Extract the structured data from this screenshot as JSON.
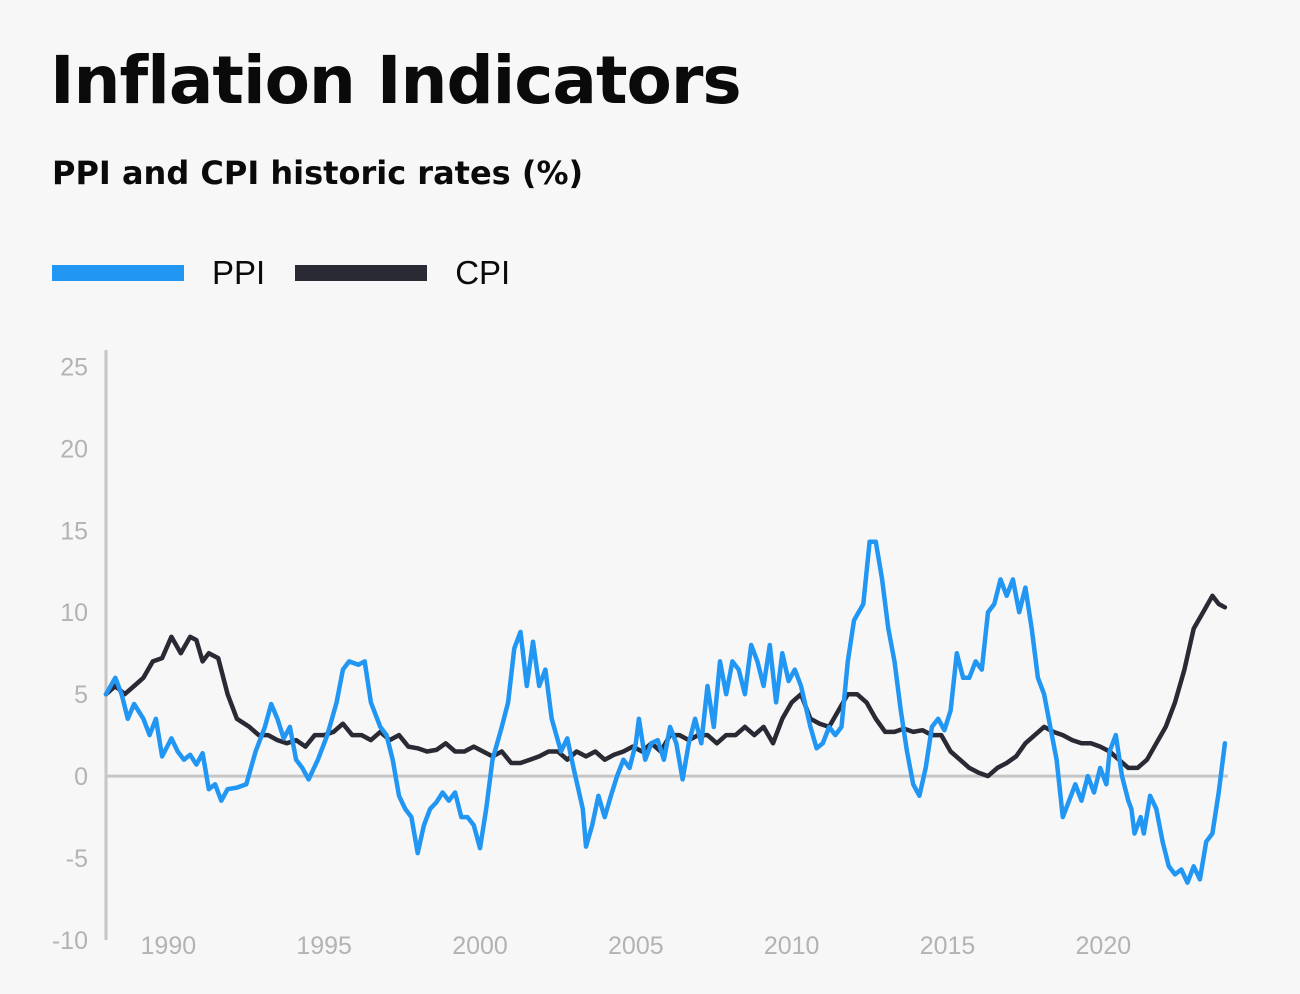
{
  "title": "Inflation Indicators",
  "subtitle": "PPI and CPI historic rates (%)",
  "legend": [
    {
      "label": "PPI",
      "color": "#2196f3"
    },
    {
      "label": "CPI",
      "color": "#2a2a35"
    }
  ],
  "chart_data": {
    "type": "line",
    "title": "Inflation Indicators",
    "subtitle": "PPI and CPI historic rates (%)",
    "xlabel": "",
    "ylabel": "",
    "xlim": [
      1988,
      2024
    ],
    "ylim": [
      -10,
      26
    ],
    "x_ticks": [
      1990,
      1995,
      2000,
      2005,
      2010,
      2015,
      2020
    ],
    "y_ticks": [
      -10,
      -5,
      0,
      5,
      10,
      15,
      20,
      25
    ],
    "grid": false,
    "legend_position": "top-left",
    "series": [
      {
        "name": "PPI",
        "color": "#2196f3",
        "points": [
          [
            1988.0,
            5.0
          ],
          [
            1988.3,
            6.0
          ],
          [
            1988.5,
            5.0
          ],
          [
            1988.7,
            3.5
          ],
          [
            1988.9,
            4.4
          ],
          [
            1989.2,
            3.5
          ],
          [
            1989.4,
            2.5
          ],
          [
            1989.6,
            3.5
          ],
          [
            1989.8,
            1.2
          ],
          [
            1990.1,
            2.3
          ],
          [
            1990.3,
            1.5
          ],
          [
            1990.5,
            1.0
          ],
          [
            1990.7,
            1.3
          ],
          [
            1990.9,
            0.7
          ],
          [
            1991.1,
            1.4
          ],
          [
            1991.3,
            -0.8
          ],
          [
            1991.5,
            -0.5
          ],
          [
            1991.7,
            -1.5
          ],
          [
            1991.9,
            -0.8
          ],
          [
            1992.2,
            -0.7
          ],
          [
            1992.5,
            -0.5
          ],
          [
            1992.8,
            1.5
          ],
          [
            1993.1,
            3.0
          ],
          [
            1993.3,
            4.4
          ],
          [
            1993.5,
            3.5
          ],
          [
            1993.7,
            2.3
          ],
          [
            1993.9,
            3.0
          ],
          [
            1994.1,
            1.0
          ],
          [
            1994.3,
            0.5
          ],
          [
            1994.5,
            -0.2
          ],
          [
            1994.8,
            1.0
          ],
          [
            1995.1,
            2.5
          ],
          [
            1995.4,
            4.5
          ],
          [
            1995.6,
            6.5
          ],
          [
            1995.8,
            7.0
          ],
          [
            1996.1,
            6.8
          ],
          [
            1996.3,
            7.0
          ],
          [
            1996.5,
            4.5
          ],
          [
            1996.8,
            3.0
          ],
          [
            1997.0,
            2.5
          ],
          [
            1997.2,
            1.0
          ],
          [
            1997.4,
            -1.2
          ],
          [
            1997.6,
            -2.0
          ],
          [
            1997.8,
            -2.5
          ],
          [
            1998.0,
            -4.7
          ],
          [
            1998.2,
            -3.0
          ],
          [
            1998.4,
            -2.0
          ],
          [
            1998.6,
            -1.6
          ],
          [
            1998.8,
            -1.0
          ],
          [
            1999.0,
            -1.5
          ],
          [
            1999.2,
            -1.0
          ],
          [
            1999.4,
            -2.5
          ],
          [
            1999.6,
            -2.5
          ],
          [
            1999.8,
            -3.0
          ],
          [
            2000.0,
            -4.4
          ],
          [
            2000.2,
            -2.0
          ],
          [
            2000.4,
            1.0
          ],
          [
            2000.7,
            3.0
          ],
          [
            2000.9,
            4.5
          ],
          [
            2001.1,
            7.8
          ],
          [
            2001.3,
            8.8
          ],
          [
            2001.5,
            5.5
          ],
          [
            2001.7,
            8.2
          ],
          [
            2001.9,
            5.5
          ],
          [
            2002.1,
            6.5
          ],
          [
            2002.3,
            3.5
          ],
          [
            2002.6,
            1.5
          ],
          [
            2002.8,
            2.3
          ],
          [
            2003.0,
            0.5
          ],
          [
            2003.3,
            -2.0
          ],
          [
            2003.4,
            -4.3
          ],
          [
            2003.6,
            -3.0
          ],
          [
            2003.8,
            -1.2
          ],
          [
            2004.0,
            -2.5
          ],
          [
            2004.2,
            -1.2
          ],
          [
            2004.4,
            0.0
          ],
          [
            2004.6,
            1.0
          ],
          [
            2004.8,
            0.5
          ],
          [
            2005.0,
            2.0
          ],
          [
            2005.1,
            3.5
          ],
          [
            2005.3,
            1.0
          ],
          [
            2005.5,
            2.0
          ],
          [
            2005.7,
            2.2
          ],
          [
            2005.9,
            1.0
          ],
          [
            2006.1,
            3.0
          ],
          [
            2006.3,
            2.0
          ],
          [
            2006.5,
            -0.2
          ],
          [
            2006.7,
            2.0
          ],
          [
            2006.9,
            3.5
          ],
          [
            2007.1,
            2.0
          ],
          [
            2007.3,
            5.5
          ],
          [
            2007.5,
            3.0
          ],
          [
            2007.7,
            7.0
          ],
          [
            2007.9,
            5.0
          ],
          [
            2008.1,
            7.0
          ],
          [
            2008.3,
            6.5
          ],
          [
            2008.5,
            5.0
          ],
          [
            2008.7,
            8.0
          ],
          [
            2008.9,
            7.0
          ],
          [
            2009.1,
            5.5
          ],
          [
            2009.3,
            8.0
          ],
          [
            2009.5,
            4.5
          ],
          [
            2009.7,
            7.5
          ],
          [
            2009.9,
            5.8
          ],
          [
            2010.1,
            6.5
          ],
          [
            2010.3,
            5.5
          ],
          [
            2010.6,
            3.0
          ],
          [
            2010.8,
            1.7
          ],
          [
            2011.0,
            2.0
          ],
          [
            2011.2,
            3.0
          ],
          [
            2011.4,
            2.5
          ],
          [
            2011.6,
            3.0
          ],
          [
            2011.8,
            7.0
          ],
          [
            2012.0,
            9.5
          ],
          [
            2012.3,
            10.5
          ],
          [
            2012.5,
            14.3
          ],
          [
            2012.7,
            14.3
          ],
          [
            2012.9,
            12.0
          ],
          [
            2013.1,
            9.0
          ],
          [
            2013.3,
            7.0
          ],
          [
            2013.5,
            4.0
          ],
          [
            2013.7,
            1.5
          ],
          [
            2013.9,
            -0.5
          ],
          [
            2014.1,
            -1.2
          ],
          [
            2014.3,
            0.5
          ],
          [
            2014.5,
            3.0
          ],
          [
            2014.7,
            3.5
          ],
          [
            2014.9,
            2.8
          ],
          [
            2015.1,
            4.0
          ],
          [
            2015.3,
            7.5
          ],
          [
            2015.5,
            6.0
          ],
          [
            2015.7,
            6.0
          ],
          [
            2015.9,
            7.0
          ],
          [
            2016.1,
            6.5
          ],
          [
            2016.3,
            10.0
          ],
          [
            2016.5,
            10.5
          ],
          [
            2016.7,
            12.0
          ],
          [
            2016.9,
            11.0
          ],
          [
            2017.1,
            12.0
          ],
          [
            2017.3,
            10.0
          ],
          [
            2017.5,
            11.5
          ],
          [
            2017.7,
            9.0
          ],
          [
            2017.9,
            6.0
          ],
          [
            2018.1,
            5.0
          ],
          [
            2018.3,
            3.0
          ],
          [
            2018.5,
            1.0
          ],
          [
            2018.7,
            -2.5
          ],
          [
            2018.9,
            -1.5
          ],
          [
            2019.1,
            -0.5
          ],
          [
            2019.3,
            -1.5
          ],
          [
            2019.5,
            0.0
          ],
          [
            2019.7,
            -1.0
          ],
          [
            2019.9,
            0.5
          ],
          [
            2020.1,
            -0.5
          ],
          [
            2020.2,
            1.5
          ],
          [
            2020.4,
            2.5
          ],
          [
            2020.6,
            0.0
          ],
          [
            2020.8,
            -1.5
          ],
          [
            2020.9,
            -2.0
          ],
          [
            2021.0,
            -3.5
          ],
          [
            2021.2,
            -2.5
          ],
          [
            2021.3,
            -3.5
          ],
          [
            2021.5,
            -1.2
          ],
          [
            2021.7,
            -2.0
          ],
          [
            2021.9,
            -4.0
          ],
          [
            2022.1,
            -5.5
          ],
          [
            2022.3,
            -6.0
          ],
          [
            2022.5,
            -5.7
          ],
          [
            2022.7,
            -6.5
          ],
          [
            2022.9,
            -5.5
          ],
          [
            2023.1,
            -6.3
          ],
          [
            2023.3,
            -4.0
          ],
          [
            2023.5,
            -3.5
          ],
          [
            2023.7,
            -1.0
          ],
          [
            2023.9,
            2.0
          ]
        ]
      },
      {
        "name": "CPI",
        "color": "#2a2a35",
        "points": [
          [
            1988.0,
            5.0
          ],
          [
            1988.3,
            5.5
          ],
          [
            1988.6,
            5.0
          ],
          [
            1988.9,
            5.5
          ],
          [
            1989.2,
            6.0
          ],
          [
            1989.5,
            7.0
          ],
          [
            1989.8,
            7.2
          ],
          [
            1990.1,
            8.5
          ],
          [
            1990.4,
            7.5
          ],
          [
            1990.7,
            8.5
          ],
          [
            1990.9,
            8.3
          ],
          [
            1991.1,
            7.0
          ],
          [
            1991.3,
            7.5
          ],
          [
            1991.6,
            7.2
          ],
          [
            1991.9,
            5.0
          ],
          [
            1992.2,
            3.5
          ],
          [
            1992.6,
            3.0
          ],
          [
            1992.9,
            2.5
          ],
          [
            1993.2,
            2.5
          ],
          [
            1993.5,
            2.2
          ],
          [
            1993.8,
            2.0
          ],
          [
            1994.1,
            2.2
          ],
          [
            1994.4,
            1.8
          ],
          [
            1994.7,
            2.5
          ],
          [
            1995.0,
            2.5
          ],
          [
            1995.3,
            2.7
          ],
          [
            1995.6,
            3.2
          ],
          [
            1995.9,
            2.5
          ],
          [
            1996.2,
            2.5
          ],
          [
            1996.5,
            2.2
          ],
          [
            1996.8,
            2.7
          ],
          [
            1997.1,
            2.2
          ],
          [
            1997.4,
            2.5
          ],
          [
            1997.7,
            1.8
          ],
          [
            1998.0,
            1.7
          ],
          [
            1998.3,
            1.5
          ],
          [
            1998.6,
            1.6
          ],
          [
            1998.9,
            2.0
          ],
          [
            1999.2,
            1.5
          ],
          [
            1999.5,
            1.5
          ],
          [
            1999.8,
            1.8
          ],
          [
            2000.1,
            1.5
          ],
          [
            2000.4,
            1.2
          ],
          [
            2000.7,
            1.5
          ],
          [
            2001.0,
            0.8
          ],
          [
            2001.3,
            0.8
          ],
          [
            2001.6,
            1.0
          ],
          [
            2001.9,
            1.2
          ],
          [
            2002.2,
            1.5
          ],
          [
            2002.5,
            1.5
          ],
          [
            2002.8,
            1.0
          ],
          [
            2003.1,
            1.5
          ],
          [
            2003.4,
            1.2
          ],
          [
            2003.7,
            1.5
          ],
          [
            2004.0,
            1.0
          ],
          [
            2004.3,
            1.3
          ],
          [
            2004.6,
            1.5
          ],
          [
            2004.9,
            1.8
          ],
          [
            2005.2,
            1.5
          ],
          [
            2005.5,
            2.0
          ],
          [
            2005.8,
            1.5
          ],
          [
            2006.1,
            2.5
          ],
          [
            2006.4,
            2.5
          ],
          [
            2006.7,
            2.2
          ],
          [
            2007.0,
            2.5
          ],
          [
            2007.3,
            2.5
          ],
          [
            2007.6,
            2.0
          ],
          [
            2007.9,
            2.5
          ],
          [
            2008.2,
            2.5
          ],
          [
            2008.5,
            3.0
          ],
          [
            2008.8,
            2.5
          ],
          [
            2009.1,
            3.0
          ],
          [
            2009.4,
            2.0
          ],
          [
            2009.7,
            3.5
          ],
          [
            2010.0,
            4.5
          ],
          [
            2010.3,
            5.0
          ],
          [
            2010.6,
            3.5
          ],
          [
            2010.9,
            3.2
          ],
          [
            2011.2,
            3.0
          ],
          [
            2011.5,
            4.0
          ],
          [
            2011.8,
            5.0
          ],
          [
            2012.1,
            5.0
          ],
          [
            2012.4,
            4.5
          ],
          [
            2012.7,
            3.5
          ],
          [
            2013.0,
            2.7
          ],
          [
            2013.3,
            2.7
          ],
          [
            2013.6,
            2.9
          ],
          [
            2013.9,
            2.7
          ],
          [
            2014.2,
            2.8
          ],
          [
            2014.5,
            2.5
          ],
          [
            2014.8,
            2.5
          ],
          [
            2015.1,
            1.5
          ],
          [
            2015.4,
            1.0
          ],
          [
            2015.7,
            0.5
          ],
          [
            2016.0,
            0.2
          ],
          [
            2016.3,
            0.0
          ],
          [
            2016.6,
            0.5
          ],
          [
            2016.9,
            0.8
          ],
          [
            2017.2,
            1.2
          ],
          [
            2017.5,
            2.0
          ],
          [
            2017.8,
            2.5
          ],
          [
            2018.1,
            3.0
          ],
          [
            2018.4,
            2.7
          ],
          [
            2018.7,
            2.5
          ],
          [
            2019.0,
            2.2
          ],
          [
            2019.3,
            2.0
          ],
          [
            2019.6,
            2.0
          ],
          [
            2019.9,
            1.8
          ],
          [
            2020.2,
            1.5
          ],
          [
            2020.5,
            1.0
          ],
          [
            2020.8,
            0.5
          ],
          [
            2021.1,
            0.5
          ],
          [
            2021.4,
            1.0
          ],
          [
            2021.7,
            2.0
          ],
          [
            2022.0,
            3.0
          ],
          [
            2022.3,
            4.5
          ],
          [
            2022.6,
            6.5
          ],
          [
            2022.9,
            9.0
          ],
          [
            2023.2,
            10.0
          ],
          [
            2023.5,
            11.0
          ],
          [
            2023.7,
            10.5
          ],
          [
            2023.9,
            10.3
          ]
        ]
      }
    ]
  }
}
